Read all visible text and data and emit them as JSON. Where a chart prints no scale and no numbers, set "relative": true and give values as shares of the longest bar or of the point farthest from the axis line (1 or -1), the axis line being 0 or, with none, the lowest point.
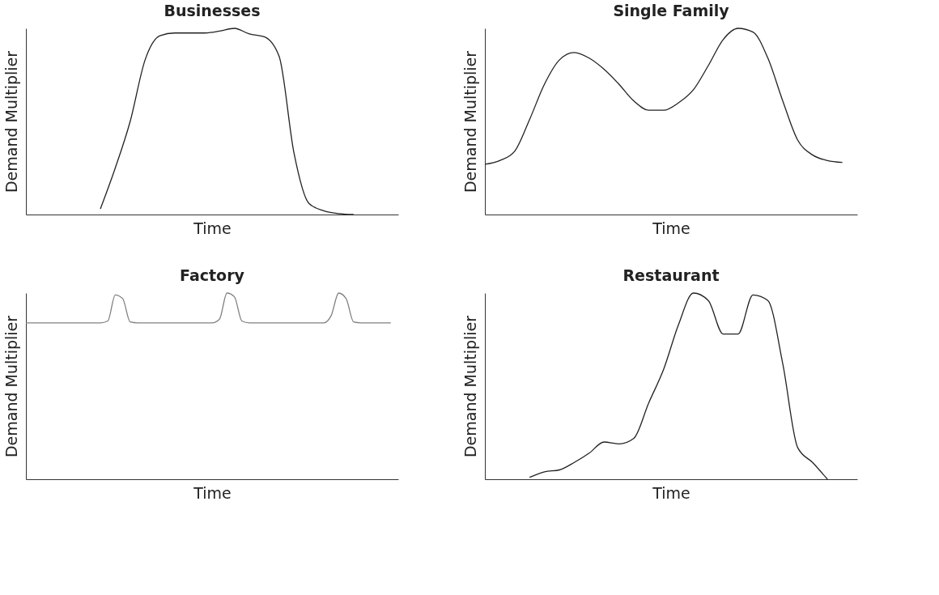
{
  "chart_data": [
    {
      "type": "line",
      "title": "Businesses",
      "xlabel": "Time",
      "ylabel": "Demand Multiplier",
      "relative": true,
      "categories": [
        null,
        null,
        null,
        null,
        null,
        null,
        null,
        null,
        null,
        null,
        null,
        null,
        null,
        null,
        null,
        null,
        null,
        null,
        null,
        null,
        null,
        null,
        null,
        null,
        null,
        null
      ],
      "series": [
        {
          "color": "#222222",
          "values": [
            null,
            null,
            null,
            null,
            null,
            0.03,
            0.25,
            0.5,
            0.83,
            0.96,
            0.975,
            0.975,
            0.975,
            0.985,
            1.0,
            0.97,
            0.955,
            0.85,
            0.33,
            0.06,
            0.02,
            0.005,
            0,
            null,
            null,
            null
          ]
        }
      ]
    },
    {
      "type": "line",
      "title": "Single Family",
      "xlabel": "Time",
      "ylabel": "Demand Multiplier",
      "relative": true,
      "categories": [
        null,
        null,
        null,
        null,
        null,
        null,
        null,
        null,
        null,
        null,
        null,
        null,
        null,
        null,
        null,
        null,
        null,
        null,
        null,
        null,
        null,
        null,
        null,
        null,
        null,
        null
      ],
      "series": [
        {
          "color": "#222222",
          "values": [
            0.27,
            0.29,
            0.34,
            0.51,
            0.7,
            0.83,
            0.87,
            0.84,
            0.78,
            0.7,
            0.61,
            0.56,
            0.56,
            0.6,
            0.67,
            0.8,
            0.94,
            1.0,
            0.98,
            0.84,
            0.61,
            0.4,
            0.32,
            0.29,
            0.28,
            null
          ]
        }
      ]
    },
    {
      "type": "line",
      "title": "Factory",
      "xlabel": "Time",
      "ylabel": "Demand Multiplier",
      "relative": true,
      "categories": [
        null,
        null,
        null,
        null,
        null,
        null,
        null,
        null,
        null,
        null,
        null,
        null,
        null,
        null,
        null,
        null,
        null,
        null,
        null,
        null,
        null,
        null,
        null,
        null,
        null,
        null,
        null,
        null,
        null,
        null,
        null,
        null,
        null,
        null,
        null,
        null,
        null,
        null,
        null,
        null,
        null,
        null,
        null,
        null,
        null,
        null,
        null,
        null,
        null,
        null,
        null
      ],
      "series": [
        {
          "color": "#808080",
          "values": [
            0.84,
            0.84,
            0.84,
            0.84,
            0.84,
            0.84,
            0.84,
            0.84,
            0.84,
            0.84,
            0.84,
            0.85,
            0.99,
            0.97,
            0.845,
            0.84,
            0.84,
            0.84,
            0.84,
            0.84,
            0.84,
            0.84,
            0.84,
            0.84,
            0.84,
            0.84,
            0.86,
            1.0,
            0.98,
            0.85,
            0.84,
            0.84,
            0.84,
            0.84,
            0.84,
            0.84,
            0.84,
            0.84,
            0.84,
            0.84,
            0.84,
            0.88,
            1.0,
            0.97,
            0.845,
            0.84,
            0.84,
            0.84,
            0.84,
            0.84,
            null
          ]
        }
      ]
    },
    {
      "type": "line",
      "title": "Restaurant",
      "xlabel": "Time",
      "ylabel": "Demand Multiplier",
      "relative": true,
      "categories": [
        null,
        null,
        null,
        null,
        null,
        null,
        null,
        null,
        null,
        null,
        null,
        null,
        null,
        null,
        null,
        null,
        null,
        null,
        null,
        null,
        null,
        null,
        null,
        null,
        null,
        null
      ],
      "series": [
        {
          "color": "#222222",
          "values": [
            null,
            null,
            null,
            0.01,
            0.04,
            0.05,
            0.09,
            0.14,
            0.2,
            0.19,
            0.22,
            0.41,
            0.59,
            0.83,
            1.0,
            0.96,
            0.78,
            0.78,
            0.99,
            0.96,
            0.62,
            0.17,
            0.09,
            0,
            null,
            null
          ]
        }
      ]
    }
  ]
}
